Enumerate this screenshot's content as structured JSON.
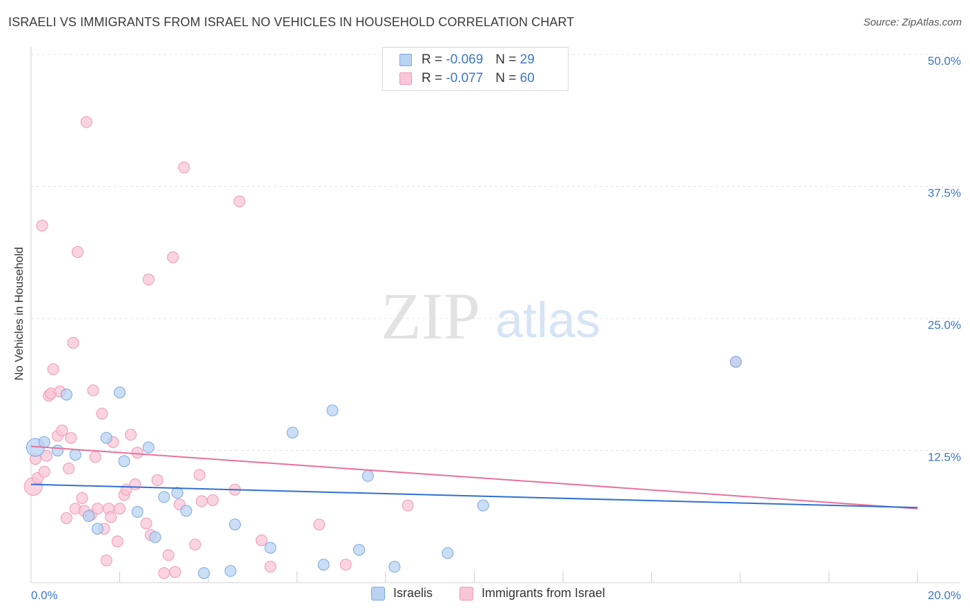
{
  "title": "ISRAELI VS IMMIGRANTS FROM ISRAEL NO VEHICLES IN HOUSEHOLD CORRELATION CHART",
  "source": "Source: ZipAtlas.com",
  "watermark": {
    "part1": "ZIP",
    "part2": "atlas"
  },
  "legend": {
    "rows": [
      {
        "r_label": "R =",
        "r_value": "-0.069",
        "n_label": "N =",
        "n_value": "29"
      },
      {
        "r_label": "R =",
        "r_value": "-0.077",
        "n_label": "N =",
        "n_value": "60"
      }
    ]
  },
  "bottom_legend": {
    "series1": "Israelis",
    "series2": "Immigrants from Israel"
  },
  "colors": {
    "blue_fill": "#b8d3f3",
    "blue_stroke": "#7aa6e0",
    "blue_line": "#2f6fcf",
    "pink_fill": "#f8c6d6",
    "pink_stroke": "#ee98b4",
    "pink_line": "#e8709a",
    "grid": "#e3e3e3",
    "tick_text": "#3a76c8"
  },
  "chart_data": {
    "type": "scatter",
    "title": "ISRAELI VS IMMIGRANTS FROM ISRAEL NO VEHICLES IN HOUSEHOLD CORRELATION CHART",
    "xlabel": "",
    "ylabel": "No Vehicles in Household",
    "xlim": [
      0,
      20
    ],
    "ylim": [
      0,
      50
    ],
    "x_tick_labels": [
      "0.0%",
      "20.0%"
    ],
    "y_ticks": [
      12.5,
      25.0,
      37.5,
      50.0
    ],
    "y_tick_labels": [
      "12.5%",
      "25.0%",
      "37.5%",
      "50.0%"
    ],
    "series": [
      {
        "name": "Israelis",
        "color": "blue",
        "r": -0.069,
        "n": 29,
        "trend": {
          "x": [
            0,
            20
          ],
          "y": [
            9.3,
            7.1
          ]
        },
        "points": [
          {
            "x": 0.1,
            "y": 12.8,
            "size": "large"
          },
          {
            "x": 0.3,
            "y": 13.3
          },
          {
            "x": 0.6,
            "y": 12.5
          },
          {
            "x": 0.8,
            "y": 17.8
          },
          {
            "x": 1.0,
            "y": 12.1
          },
          {
            "x": 1.3,
            "y": 6.3
          },
          {
            "x": 1.5,
            "y": 5.1
          },
          {
            "x": 1.7,
            "y": 13.7
          },
          {
            "x": 2.0,
            "y": 18.0
          },
          {
            "x": 2.1,
            "y": 11.5
          },
          {
            "x": 2.4,
            "y": 6.7
          },
          {
            "x": 2.65,
            "y": 12.8
          },
          {
            "x": 2.8,
            "y": 4.3
          },
          {
            "x": 3.0,
            "y": 8.1
          },
          {
            "x": 3.3,
            "y": 8.5
          },
          {
            "x": 3.5,
            "y": 6.8
          },
          {
            "x": 3.9,
            "y": 0.9
          },
          {
            "x": 4.5,
            "y": 1.1
          },
          {
            "x": 4.6,
            "y": 5.5
          },
          {
            "x": 5.4,
            "y": 3.3
          },
          {
            "x": 5.9,
            "y": 14.2
          },
          {
            "x": 6.6,
            "y": 1.7
          },
          {
            "x": 6.8,
            "y": 16.3
          },
          {
            "x": 7.4,
            "y": 3.1
          },
          {
            "x": 7.6,
            "y": 10.1
          },
          {
            "x": 8.2,
            "y": 1.5
          },
          {
            "x": 9.4,
            "y": 2.8
          },
          {
            "x": 10.2,
            "y": 7.3
          },
          {
            "x": 15.9,
            "y": 20.9
          }
        ]
      },
      {
        "name": "Immigrants from Israel",
        "color": "pink",
        "r": -0.077,
        "n": 60,
        "trend": {
          "x": [
            0,
            20
          ],
          "y": [
            12.9,
            7.0
          ]
        },
        "points": [
          {
            "x": 0.05,
            "y": 9.1,
            "size": "large"
          },
          {
            "x": 0.1,
            "y": 11.7
          },
          {
            "x": 0.15,
            "y": 9.9
          },
          {
            "x": 0.25,
            "y": 33.8
          },
          {
            "x": 0.3,
            "y": 10.5
          },
          {
            "x": 0.35,
            "y": 12.0
          },
          {
            "x": 0.4,
            "y": 17.7
          },
          {
            "x": 0.45,
            "y": 17.9
          },
          {
            "x": 0.5,
            "y": 20.2
          },
          {
            "x": 0.6,
            "y": 13.9
          },
          {
            "x": 0.65,
            "y": 18.1
          },
          {
            "x": 0.7,
            "y": 14.4
          },
          {
            "x": 0.8,
            "y": 6.1
          },
          {
            "x": 0.85,
            "y": 10.8
          },
          {
            "x": 0.9,
            "y": 13.7
          },
          {
            "x": 0.95,
            "y": 22.7
          },
          {
            "x": 1.0,
            "y": 7.0
          },
          {
            "x": 1.05,
            "y": 31.3
          },
          {
            "x": 1.15,
            "y": 8.0
          },
          {
            "x": 1.2,
            "y": 6.8
          },
          {
            "x": 1.25,
            "y": 43.6
          },
          {
            "x": 1.35,
            "y": 6.4
          },
          {
            "x": 1.4,
            "y": 18.2
          },
          {
            "x": 1.45,
            "y": 11.9
          },
          {
            "x": 1.5,
            "y": 7.0
          },
          {
            "x": 1.6,
            "y": 16.0
          },
          {
            "x": 1.65,
            "y": 5.1
          },
          {
            "x": 1.7,
            "y": 2.1
          },
          {
            "x": 1.75,
            "y": 7.0
          },
          {
            "x": 1.8,
            "y": 6.2
          },
          {
            "x": 1.85,
            "y": 13.3
          },
          {
            "x": 1.95,
            "y": 3.9
          },
          {
            "x": 2.0,
            "y": 7.0
          },
          {
            "x": 2.1,
            "y": 8.3
          },
          {
            "x": 2.15,
            "y": 8.8
          },
          {
            "x": 2.25,
            "y": 14.0
          },
          {
            "x": 2.35,
            "y": 9.3
          },
          {
            "x": 2.4,
            "y": 12.3
          },
          {
            "x": 2.6,
            "y": 5.6
          },
          {
            "x": 2.65,
            "y": 28.7
          },
          {
            "x": 2.7,
            "y": 4.5
          },
          {
            "x": 2.85,
            "y": 9.7
          },
          {
            "x": 3.0,
            "y": 0.9
          },
          {
            "x": 3.1,
            "y": 2.6
          },
          {
            "x": 3.2,
            "y": 30.8
          },
          {
            "x": 3.25,
            "y": 1.0
          },
          {
            "x": 3.35,
            "y": 7.4
          },
          {
            "x": 3.45,
            "y": 39.3
          },
          {
            "x": 3.7,
            "y": 3.6
          },
          {
            "x": 3.8,
            "y": 10.2
          },
          {
            "x": 3.85,
            "y": 7.7
          },
          {
            "x": 4.1,
            "y": 7.8
          },
          {
            "x": 4.6,
            "y": 8.8
          },
          {
            "x": 4.7,
            "y": 36.1
          },
          {
            "x": 5.2,
            "y": 4.0
          },
          {
            "x": 5.4,
            "y": 1.5
          },
          {
            "x": 6.5,
            "y": 5.5
          },
          {
            "x": 7.1,
            "y": 1.7
          },
          {
            "x": 8.5,
            "y": 7.3
          },
          {
            "x": 15.9,
            "y": 20.9
          }
        ]
      }
    ]
  }
}
